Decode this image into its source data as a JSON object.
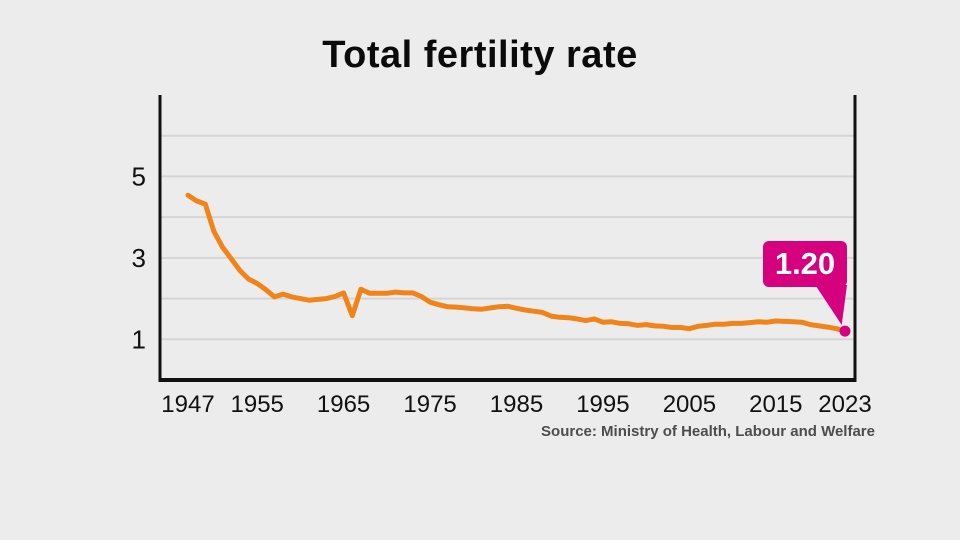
{
  "chart_data": {
    "type": "line",
    "title": "Total fertility rate",
    "xlabel": "",
    "ylabel": "",
    "legend": null,
    "grid": "horizontal",
    "ylim": [
      0,
      7
    ],
    "y_gridlines": [
      1,
      2,
      3,
      4,
      5,
      6
    ],
    "y_ticks": [
      1,
      3,
      5
    ],
    "x_ticks": [
      1947,
      1955,
      1965,
      1975,
      1985,
      1995,
      2005,
      2015,
      2023
    ],
    "years": [
      1947,
      1948,
      1949,
      1950,
      1951,
      1952,
      1953,
      1954,
      1955,
      1956,
      1957,
      1958,
      1959,
      1960,
      1961,
      1962,
      1963,
      1964,
      1965,
      1966,
      1967,
      1968,
      1969,
      1970,
      1971,
      1972,
      1973,
      1974,
      1975,
      1976,
      1977,
      1978,
      1979,
      1980,
      1981,
      1982,
      1983,
      1984,
      1985,
      1986,
      1987,
      1988,
      1989,
      1990,
      1991,
      1992,
      1993,
      1994,
      1995,
      1996,
      1997,
      1998,
      1999,
      2000,
      2001,
      2002,
      2003,
      2004,
      2005,
      2006,
      2007,
      2008,
      2009,
      2010,
      2011,
      2012,
      2013,
      2014,
      2015,
      2016,
      2017,
      2018,
      2019,
      2020,
      2021,
      2022,
      2023
    ],
    "values": [
      4.54,
      4.4,
      4.32,
      3.65,
      3.26,
      2.98,
      2.69,
      2.48,
      2.37,
      2.22,
      2.04,
      2.11,
      2.04,
      2.0,
      1.96,
      1.98,
      2.0,
      2.05,
      2.14,
      1.58,
      2.23,
      2.13,
      2.13,
      2.13,
      2.16,
      2.14,
      2.14,
      2.05,
      1.91,
      1.85,
      1.8,
      1.79,
      1.77,
      1.75,
      1.74,
      1.77,
      1.8,
      1.81,
      1.76,
      1.72,
      1.69,
      1.66,
      1.57,
      1.54,
      1.53,
      1.5,
      1.46,
      1.5,
      1.42,
      1.43,
      1.39,
      1.38,
      1.34,
      1.36,
      1.33,
      1.32,
      1.29,
      1.29,
      1.26,
      1.32,
      1.34,
      1.37,
      1.37,
      1.39,
      1.39,
      1.41,
      1.43,
      1.42,
      1.45,
      1.44,
      1.43,
      1.42,
      1.36,
      1.33,
      1.3,
      1.26,
      1.2
    ],
    "annotation": {
      "label": "1.20",
      "year": 2023,
      "value": 1.2
    },
    "colors": {
      "background": "#ececec",
      "line": "#f08419",
      "accent": "#d6017e",
      "axis": "#111111",
      "grid": "#d5d5d5"
    }
  },
  "source": "Source: Ministry of Health, Labour and Welfare"
}
